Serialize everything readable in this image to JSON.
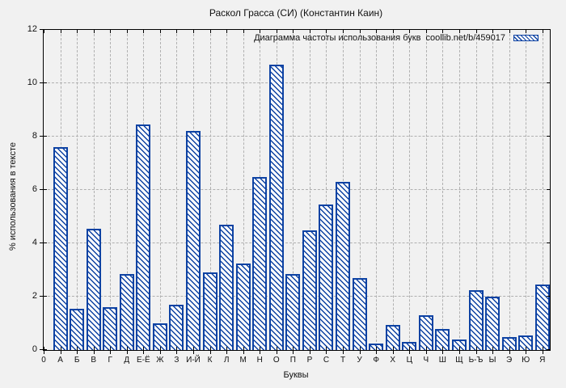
{
  "title": "Раскол Грасса (СИ) (Константин Каин)",
  "chart_data": {
    "type": "bar",
    "title": "Раскол Грасса (СИ) (Константин Каин)",
    "legend_label": "Диаграмма частоты использования букв  coollib.net/b/459017",
    "xlabel": "Буквы",
    "ylabel": "% использования в тексте",
    "x_origin_label": "0",
    "ylim": [
      0,
      12
    ],
    "yticks": [
      0,
      2,
      4,
      6,
      8,
      10,
      12
    ],
    "grid": true,
    "legend_position": "top-right-inside",
    "bar_fill": "diagonal-hatch",
    "categories": [
      "А",
      "Б",
      "В",
      "Г",
      "Д",
      "Е-Ё",
      "Ж",
      "З",
      "И-Й",
      "К",
      "Л",
      "М",
      "Н",
      "О",
      "П",
      "Р",
      "С",
      "Т",
      "У",
      "Ф",
      "Х",
      "Ц",
      "Ч",
      "Ш",
      "Щ",
      "Ь-Ъ",
      "Ы",
      "Э",
      "Ю",
      "Я"
    ],
    "values": [
      7.6,
      1.55,
      4.55,
      1.6,
      2.85,
      8.45,
      1.0,
      1.7,
      8.2,
      2.9,
      4.7,
      3.25,
      6.5,
      10.7,
      2.85,
      4.5,
      5.45,
      6.3,
      2.7,
      0.25,
      0.95,
      0.3,
      1.3,
      0.8,
      0.4,
      2.25,
      2.0,
      0.5,
      0.55,
      2.45
    ]
  },
  "colors": {
    "background": "#f1f1f1",
    "bar_border": "#0d42a3",
    "bar_hatch": "#0d42a3",
    "bar_fill": "#fcfcfc",
    "grid": "#b0b0b0",
    "axis": "#000000",
    "text": "#111111"
  }
}
